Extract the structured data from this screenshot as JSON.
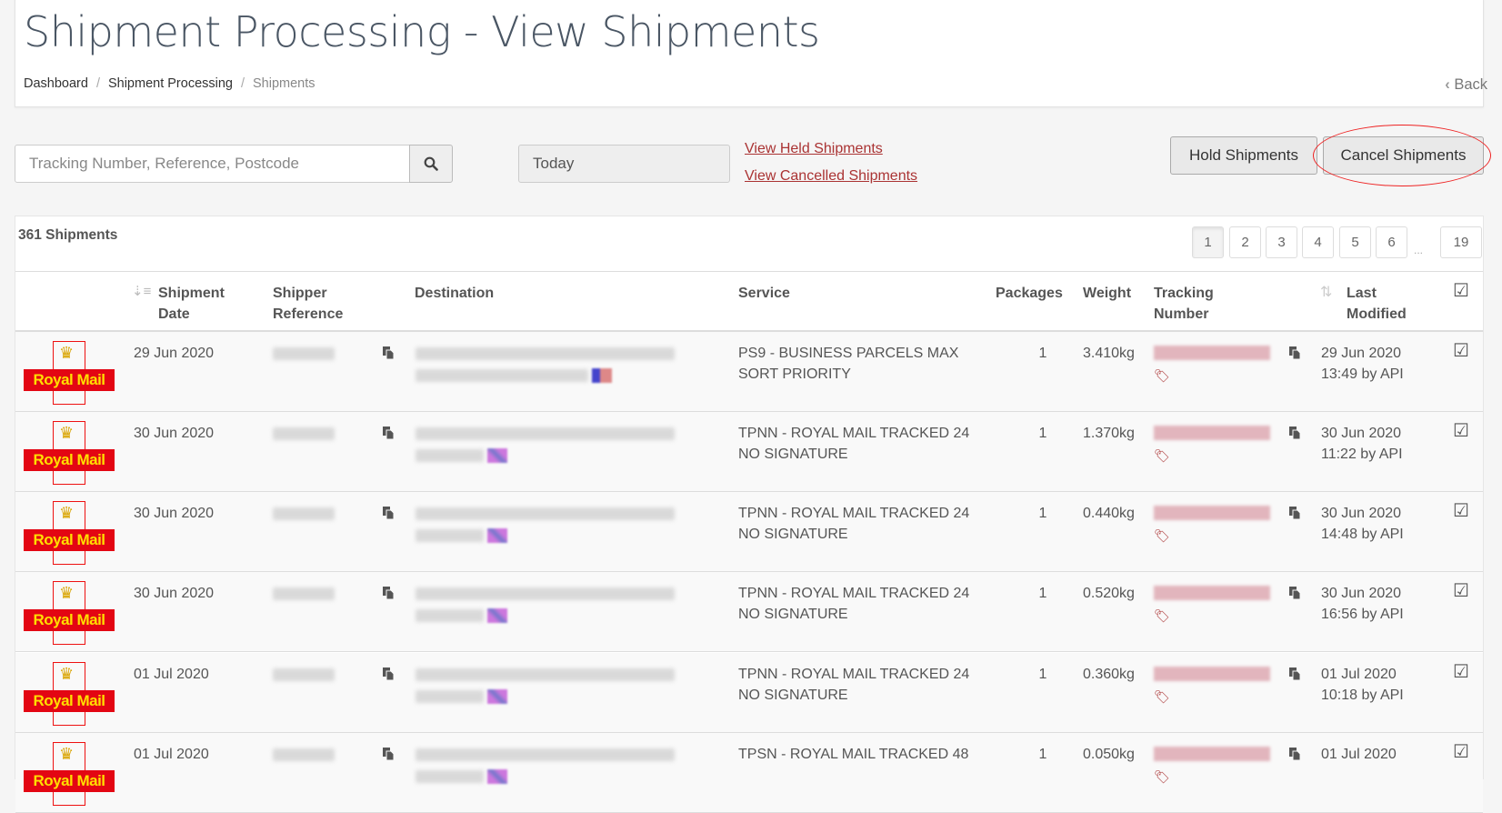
{
  "header": {
    "title": "Shipment Processing - View Shipments",
    "breadcrumb": [
      "Dashboard",
      "Shipment Processing",
      "Shipments"
    ],
    "back_label": "Back"
  },
  "toolbar": {
    "search_placeholder": "Tracking Number, Reference, Postcode",
    "date_filter": "Today",
    "view_held": "View Held Shipments",
    "view_cancelled": "View Cancelled Shipments",
    "hold_label": "Hold Shipments",
    "cancel_label": "Cancel Shipments"
  },
  "list": {
    "count": "361 Shipments",
    "pages": [
      "1",
      "2",
      "3",
      "4",
      "5",
      "6",
      "19"
    ],
    "active_page": "1",
    "ellipsis": "..."
  },
  "columns": {
    "date": [
      "Shipment",
      "Date"
    ],
    "ref": [
      "Shipper",
      "Reference"
    ],
    "destination": "Destination",
    "service": "Service",
    "packages": "Packages",
    "weight": "Weight",
    "tracking": [
      "Tracking",
      "Number"
    ],
    "modified": [
      "Last",
      "Modified"
    ]
  },
  "carrier_logo": "Royal Mail",
  "colors": {
    "link": "#aa3333",
    "royal_mail_red": "#e30613",
    "royal_mail_yellow": "#ffdf00",
    "highlight": "#ee2222"
  },
  "rows": [
    {
      "date": "29 Jun 2020",
      "service": [
        "PS9 - BUSINESS PARCELS MAX",
        "SORT PRIORITY"
      ],
      "packages": "1",
      "weight": "3.410kg",
      "modified": [
        "29 Jun 2020",
        "13:49 by API"
      ],
      "flag": "us"
    },
    {
      "date": "30 Jun 2020",
      "service": [
        "TPNN - ROYAL MAIL TRACKED 24",
        "NO SIGNATURE"
      ],
      "packages": "1",
      "weight": "1.370kg",
      "modified": [
        "30 Jun 2020",
        "11:22 by API"
      ],
      "flag": "uk"
    },
    {
      "date": "30 Jun 2020",
      "service": [
        "TPNN - ROYAL MAIL TRACKED 24",
        "NO SIGNATURE"
      ],
      "packages": "1",
      "weight": "0.440kg",
      "modified": [
        "30 Jun 2020",
        "14:48 by API"
      ],
      "flag": "uk"
    },
    {
      "date": "30 Jun 2020",
      "service": [
        "TPNN - ROYAL MAIL TRACKED 24",
        "NO SIGNATURE"
      ],
      "packages": "1",
      "weight": "0.520kg",
      "modified": [
        "30 Jun 2020",
        "16:56 by API"
      ],
      "flag": "uk"
    },
    {
      "date": "01 Jul 2020",
      "service": [
        "TPNN - ROYAL MAIL TRACKED 24",
        "NO SIGNATURE"
      ],
      "packages": "1",
      "weight": "0.360kg",
      "modified": [
        "01 Jul 2020",
        "10:18 by API"
      ],
      "flag": "uk"
    },
    {
      "date": "01 Jul 2020",
      "service": [
        "TPSN - ROYAL MAIL TRACKED 48",
        ""
      ],
      "packages": "1",
      "weight": "0.050kg",
      "modified": [
        "01 Jul 2020",
        ""
      ],
      "flag": "uk"
    }
  ]
}
